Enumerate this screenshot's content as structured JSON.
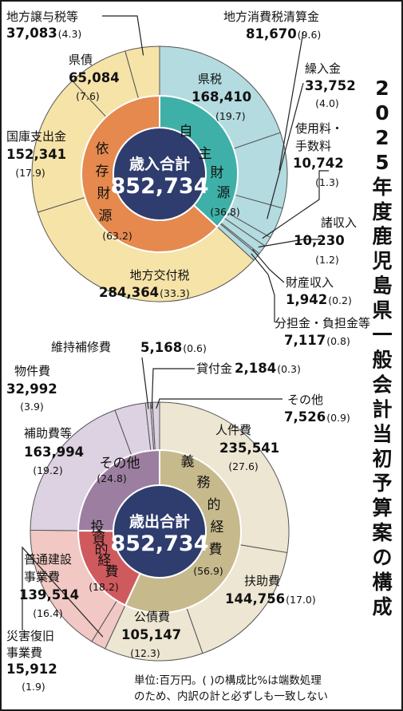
{
  "title": "2025年度鹿児島県一般会計当初予算案の構成",
  "note": [
    "単位:百万円。( )の構成比%は端数処理",
    "のため、内訳の計と必ずしも一致しない"
  ],
  "chart_data": [
    {
      "type": "pie",
      "center_label": "歳入合計",
      "total": "852,734",
      "inner_groups": [
        {
          "name": "自主財源",
          "chars": [
            "自",
            "主",
            "財",
            "源"
          ],
          "pct": "(36.8)",
          "value_pct": 36.8,
          "color": "#3fb0a8"
        },
        {
          "name": "依存財源",
          "chars": [
            "依",
            "存",
            "財",
            "源"
          ],
          "pct": "(63.2)",
          "value_pct": 63.2,
          "color": "#e5894e"
        }
      ],
      "slices": [
        {
          "name": "県税",
          "value": 168410,
          "value_text": "168,410",
          "pct": "(19.7)",
          "group": "自主財源",
          "color": "#b3dbe0"
        },
        {
          "name": "地方消費税清算金",
          "value": 81670,
          "value_text": "81,670",
          "pct": "(9.6)",
          "group": "自主財源",
          "color": "#b3dbe0"
        },
        {
          "name": "繰入金",
          "value": 33752,
          "value_text": "33,752",
          "pct": "(4.0)",
          "group": "自主財源",
          "color": "#b3dbe0"
        },
        {
          "name": "使用料・手数料",
          "value": 10742,
          "value_text": "10,742",
          "pct": "(1.3)",
          "group": "自主財源",
          "color": "#b3dbe0"
        },
        {
          "name": "諸収入",
          "value": 10230,
          "value_text": "10,230",
          "pct": "(1.2)",
          "group": "自主財源",
          "color": "#b3dbe0"
        },
        {
          "name": "財産収入",
          "value": 1942,
          "value_text": "1,942",
          "pct": "(0.2)",
          "group": "自主財源",
          "color": "#b3dbe0"
        },
        {
          "name": "分担金・負担金等",
          "value": 7117,
          "value_text": "7,117",
          "pct": "(0.8)",
          "group": "自主財源",
          "color": "#b3dbe0"
        },
        {
          "name": "地方交付税",
          "value": 284364,
          "value_text": "284,364",
          "pct": "(33.3)",
          "group": "依存財源",
          "color": "#f6e3a8"
        },
        {
          "name": "国庫支出金",
          "value": 152341,
          "value_text": "152,341",
          "pct": "(17.9)",
          "group": "依存財源",
          "color": "#f6e3a8"
        },
        {
          "name": "県債",
          "value": 65084,
          "value_text": "65,084",
          "pct": "(7.6)",
          "group": "依存財源",
          "color": "#f6e3a8"
        },
        {
          "name": "地方譲与税等",
          "value": 37083,
          "value_text": "37,083",
          "pct": "(4.3)",
          "group": "依存財源",
          "color": "#f6e3a8"
        }
      ]
    },
    {
      "type": "pie",
      "center_label": "歳出合計",
      "total": "852,734",
      "inner_groups": [
        {
          "name": "義務的経費",
          "chars": [
            "義",
            "務",
            "的",
            "経",
            "費"
          ],
          "pct": "(56.9)",
          "value_pct": 56.9,
          "color": "#c6b98c"
        },
        {
          "name": "投資的経費",
          "chars": [
            "投",
            "資",
            "的",
            "経",
            "費"
          ],
          "pct": "(18.2)",
          "value_pct": 18.2,
          "color": "#cf5a5e"
        },
        {
          "name": "その他",
          "chars": [
            "その他"
          ],
          "pct": "(24.8)",
          "value_pct": 24.8,
          "color": "#9c7fa0"
        }
      ],
      "slices": [
        {
          "name": "人件費",
          "value": 235541,
          "value_text": "235,541",
          "pct": "(27.6)",
          "group": "義務的経費",
          "color": "#ece6d2"
        },
        {
          "name": "扶助費",
          "value": 144756,
          "value_text": "144,756",
          "pct": "(17.0)",
          "group": "義務的経費",
          "color": "#ece6d2"
        },
        {
          "name": "公債費",
          "value": 105147,
          "value_text": "105,147",
          "pct": "(12.3)",
          "group": "義務的経費",
          "color": "#ece6d2"
        },
        {
          "name": "災害復旧事業費",
          "value": 15912,
          "value_text": "15,912",
          "pct": "(1.9)",
          "group": "投資的経費",
          "color": "#f1c8c4"
        },
        {
          "name": "普通建設事業費",
          "value": 139514,
          "value_text": "139,514",
          "pct": "(16.4)",
          "group": "投資的経費",
          "color": "#f1c8c4"
        },
        {
          "name": "補助費等",
          "value": 163994,
          "value_text": "163,994",
          "pct": "(19.2)",
          "group": "その他",
          "color": "#ddd2e2"
        },
        {
          "name": "物件費",
          "value": 32992,
          "value_text": "32,992",
          "pct": "(3.9)",
          "group": "その他",
          "color": "#ddd2e2"
        },
        {
          "name": "維持補修費",
          "value": 5168,
          "value_text": "5,168",
          "pct": "(0.6)",
          "group": "その他",
          "color": "#ddd2e2"
        },
        {
          "name": "貸付金",
          "value": 2184,
          "value_text": "2,184",
          "pct": "(0.3)",
          "group": "その他",
          "color": "#ddd2e2"
        },
        {
          "name": "その他",
          "value": 7526,
          "value_text": "7,526",
          "pct": "(0.9)",
          "group": "その他",
          "color": "#ddd2e2"
        }
      ]
    }
  ]
}
